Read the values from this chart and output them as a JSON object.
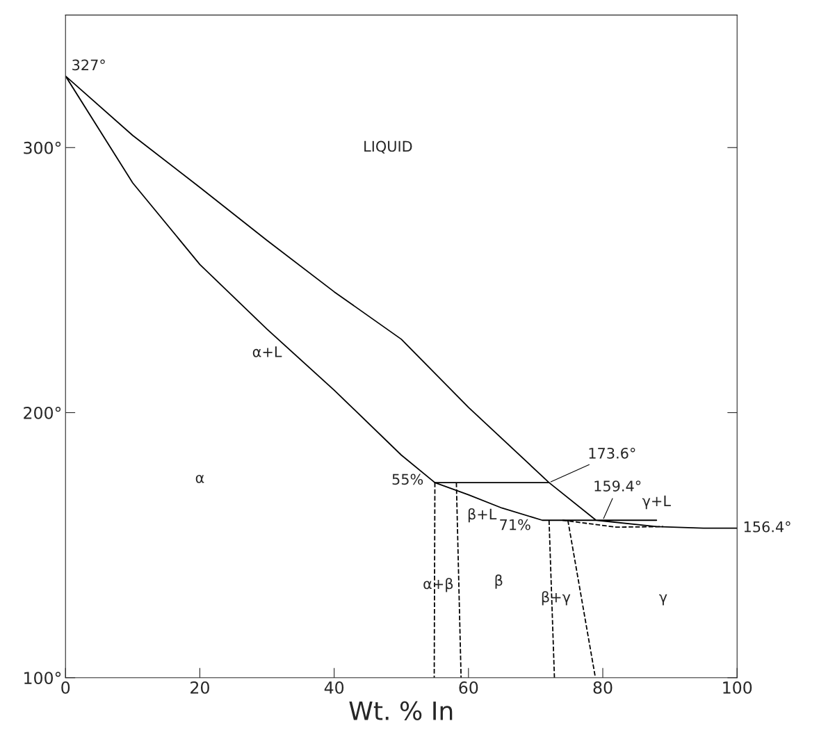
{
  "chart_data": {
    "type": "line",
    "xlabel": "Wt. % In",
    "xlim": [
      0,
      100
    ],
    "ylim": [
      100,
      350
    ],
    "xticks": [
      0,
      20,
      40,
      60,
      80,
      100
    ],
    "yticks": [
      {
        "value": 100,
        "label": "100°"
      },
      {
        "value": 200,
        "label": "200°"
      },
      {
        "value": 300,
        "label": "300°"
      }
    ],
    "grid": false,
    "legend": false,
    "marker": "none",
    "series": [
      {
        "color": "#000000",
        "line_style": "solid",
        "x": [
          88,
          71,
          65,
          60,
          55,
          50,
          40,
          30,
          20,
          10,
          0,
          10,
          20,
          30,
          40,
          50,
          60,
          72,
          79,
          88,
          95,
          100
        ],
        "values": [
          159.4,
          159.4,
          164,
          169,
          173.6,
          184,
          208.5,
          231.5,
          255.9,
          286.7,
          327,
          304.6,
          285,
          265,
          245.6,
          227.7,
          202,
          173.6,
          159.4,
          157,
          156.4,
          156.4
        ]
      },
      {
        "color": "#000000",
        "line_style": "solid",
        "x": [
          55,
          72
        ],
        "values": [
          173.6,
          173.6
        ]
      },
      {
        "color": "#000000",
        "line_style": "dashed",
        "x": [
          74,
          82,
          89
        ],
        "values": [
          159.4,
          156.8,
          157
        ]
      },
      {
        "color": "#000000",
        "line_style": "dashed",
        "x": [
          55,
          54.9
        ],
        "values": [
          173.6,
          100
        ]
      },
      {
        "color": "#000000",
        "line_style": "dashed",
        "x": [
          58.2,
          58.9
        ],
        "values": [
          173.6,
          100
        ]
      },
      {
        "color": "#000000",
        "line_style": "dashed",
        "x": [
          72,
          72.8
        ],
        "values": [
          159.4,
          100
        ]
      },
      {
        "color": "#000000",
        "line_style": "dashed",
        "x": [
          74.8,
          78.9
        ],
        "values": [
          159.4,
          100
        ]
      }
    ],
    "annotations": [
      {
        "text": "327°",
        "x": 0,
        "y": 327
      },
      {
        "text": "173.6°",
        "x": 72,
        "y": 173.6
      },
      {
        "text": "159.4°",
        "x": 80,
        "y": 159.4
      },
      {
        "text": "156.4°",
        "x": 100,
        "y": 156.4
      },
      {
        "text": "55%",
        "x": 55,
        "y": 173.6
      },
      {
        "text": "71%",
        "x": 71,
        "y": 159.4
      },
      "LIQUID",
      "α+L",
      "α",
      "β+L",
      "γ+L",
      "α+β",
      "β",
      "β+γ",
      "γ"
    ]
  }
}
